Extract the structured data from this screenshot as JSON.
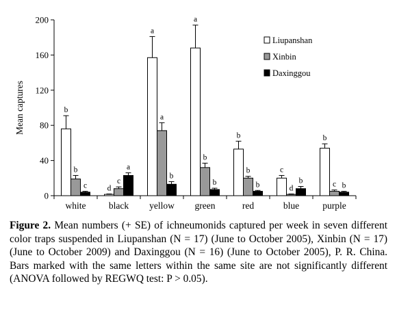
{
  "chart_data": {
    "type": "bar",
    "title": "",
    "xlabel": "",
    "ylabel": "Mean captures",
    "ylim": [
      0,
      200
    ],
    "yticks": [
      0,
      40,
      80,
      120,
      160,
      200
    ],
    "categories": [
      "white",
      "black",
      "yellow",
      "green",
      "red",
      "blue",
      "purple"
    ],
    "legend_position": "top-right",
    "series": [
      {
        "name": "Liupanshan",
        "color": "#ffffff",
        "values": [
          76,
          1.5,
          157,
          168,
          53,
          20,
          54
        ],
        "se": [
          15,
          0.5,
          24,
          26,
          9,
          3,
          5
        ],
        "letters": [
          "b",
          "d",
          "a",
          "a",
          "b",
          "c",
          "b"
        ]
      },
      {
        "name": "Xinbin",
        "color": "#999999",
        "values": [
          19,
          8,
          74,
          32,
          20,
          1.5,
          5
        ],
        "se": [
          4,
          2,
          9,
          5,
          2,
          0.5,
          1.5
        ],
        "letters": [
          "b",
          "c",
          "a",
          "b",
          "b",
          "d",
          "c"
        ]
      },
      {
        "name": "Daxinggou",
        "color": "#000000",
        "values": [
          4,
          23,
          13,
          7,
          5,
          8,
          4
        ],
        "se": [
          1,
          3,
          3,
          1.5,
          1,
          2.5,
          1
        ],
        "letters": [
          "c",
          "a",
          "b",
          "b",
          "b",
          "b",
          "b"
        ]
      }
    ]
  },
  "caption": {
    "label": "Figure 2.",
    "text": " Mean numbers (+ SE) of ichneumonids captured per week in seven different color traps suspended in Liupanshan (N = 17) (June to October 2005), Xinbin (N = 17) (June to October 2009) and Daxinggou (N = 16) (June to October 2005), P. R. China. Bars marked with the same letters within the same site are not significantly different (ANOVA followed by REGWQ test: P > 0.05)."
  }
}
